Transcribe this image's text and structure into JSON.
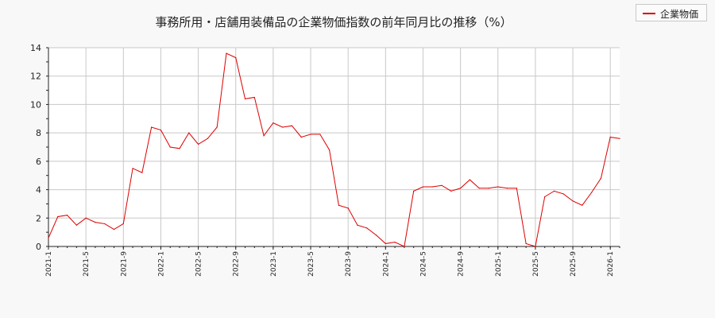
{
  "chart_data": {
    "type": "line",
    "title": "事務所用・店舗用装備品の企業物価指数の前年同月比の推移（%）",
    "xlabel": "",
    "ylabel": "",
    "ylim": [
      0,
      14
    ],
    "yticks": [
      0,
      2,
      4,
      6,
      8,
      10,
      12,
      14
    ],
    "xtick_labels": [
      "2021-1",
      "2021-5",
      "2021-9",
      "2022-1",
      "2022-5",
      "2022-9",
      "2023-1",
      "2023-5",
      "2023-9",
      "2024-1",
      "2024-5",
      "2024-9",
      "2025-1",
      "2025-5",
      "2025-9",
      "2026-1"
    ],
    "grid": true,
    "legend_position": "top-right",
    "series": [
      {
        "name": "企業物価",
        "color": "#dd0000",
        "x": [
          "2021-01",
          "2021-02",
          "2021-03",
          "2021-04",
          "2021-05",
          "2021-06",
          "2021-07",
          "2021-08",
          "2021-09",
          "2021-10",
          "2021-11",
          "2021-12",
          "2022-01",
          "2022-02",
          "2022-03",
          "2022-04",
          "2022-05",
          "2022-06",
          "2022-07",
          "2022-08",
          "2022-09",
          "2022-10",
          "2022-11",
          "2022-12",
          "2023-01",
          "2023-02",
          "2023-03",
          "2023-04",
          "2023-05",
          "2023-06",
          "2023-07",
          "2023-08",
          "2023-09",
          "2023-10",
          "2023-11",
          "2023-12",
          "2024-01",
          "2024-02",
          "2024-03",
          "2024-04",
          "2024-05",
          "2024-06",
          "2024-07",
          "2024-08",
          "2024-09",
          "2024-10",
          "2024-11",
          "2024-12",
          "2025-01",
          "2025-02",
          "2025-03",
          "2025-04",
          "2025-05",
          "2025-06",
          "2025-07",
          "2025-08",
          "2025-09",
          "2025-10",
          "2025-11",
          "2025-12",
          "2026-01",
          "2026-02"
        ],
        "values": [
          0.6,
          2.1,
          2.2,
          1.5,
          2.0,
          1.7,
          1.6,
          1.2,
          1.6,
          5.5,
          5.2,
          8.4,
          8.2,
          7.0,
          6.9,
          8.0,
          7.2,
          7.6,
          8.4,
          13.6,
          13.3,
          10.4,
          10.5,
          7.8,
          8.7,
          8.4,
          8.5,
          7.7,
          7.9,
          7.9,
          6.8,
          2.9,
          2.7,
          1.5,
          1.3,
          0.8,
          0.2,
          0.3,
          0.0,
          3.9,
          4.2,
          4.2,
          4.3,
          3.9,
          4.1,
          4.7,
          4.1,
          4.1,
          4.2,
          4.1,
          4.1,
          0.2,
          0.0,
          3.5,
          3.9,
          3.7,
          3.2,
          2.9,
          3.8,
          4.8,
          7.7,
          7.6
        ]
      }
    ]
  }
}
